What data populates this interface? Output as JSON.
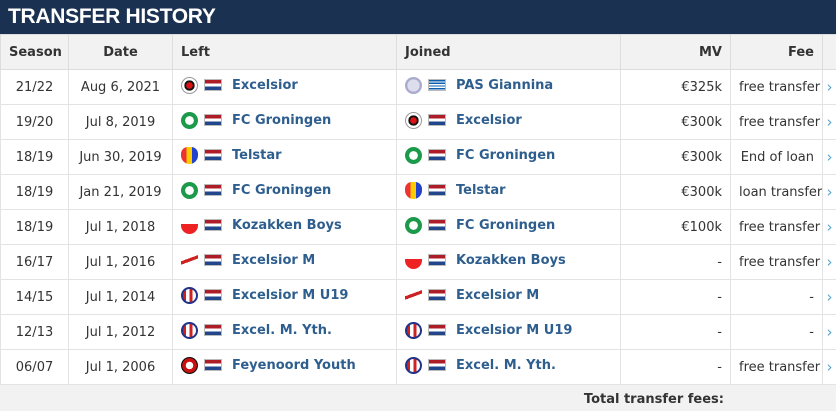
{
  "header": {
    "title": "TRANSFER HISTORY"
  },
  "table": {
    "columns": [
      "Season",
      "Date",
      "Left",
      "Joined",
      "MV",
      "Fee"
    ],
    "rows": [
      {
        "season": "21/22",
        "date": "Aug 6, 2021",
        "left": "Excelsior",
        "joined": "PAS Giannina",
        "mv": "€325k",
        "fee": "free transfer"
      },
      {
        "season": "19/20",
        "date": "Jul 8, 2019",
        "left": "FC Groningen",
        "joined": "Excelsior",
        "mv": "€300k",
        "fee": "free transfer"
      },
      {
        "season": "18/19",
        "date": "Jun 30, 2019",
        "left": "Telstar",
        "joined": "FC Groningen",
        "mv": "€300k",
        "fee": "End of loan"
      },
      {
        "season": "18/19",
        "date": "Jan 21, 2019",
        "left": "FC Groningen",
        "joined": "Telstar",
        "mv": "€300k",
        "fee": "loan transfer"
      },
      {
        "season": "18/19",
        "date": "Jul 1, 2018",
        "left": "Kozakken Boys",
        "joined": "FC Groningen",
        "mv": "€100k",
        "fee": "free transfer"
      },
      {
        "season": "16/17",
        "date": "Jul 1, 2016",
        "left": "Excelsior M",
        "joined": "Kozakken Boys",
        "mv": "-",
        "fee": "free transfer"
      },
      {
        "season": "14/15",
        "date": "Jul 1, 2014",
        "left": "Excelsior M U19",
        "joined": "Excelsior M",
        "mv": "-",
        "fee": "-"
      },
      {
        "season": "12/13",
        "date": "Jul 1, 2012",
        "left": "Excel. M. Yth.",
        "joined": "Excelsior M U19",
        "mv": "-",
        "fee": "-"
      },
      {
        "season": "06/07",
        "date": "Jul 1, 2006",
        "left": "Feyenoord Youth",
        "joined": "Excel. M. Yth.",
        "mv": "-",
        "fee": "free transfer"
      }
    ],
    "footer": {
      "label": "Total transfer fees:"
    }
  }
}
